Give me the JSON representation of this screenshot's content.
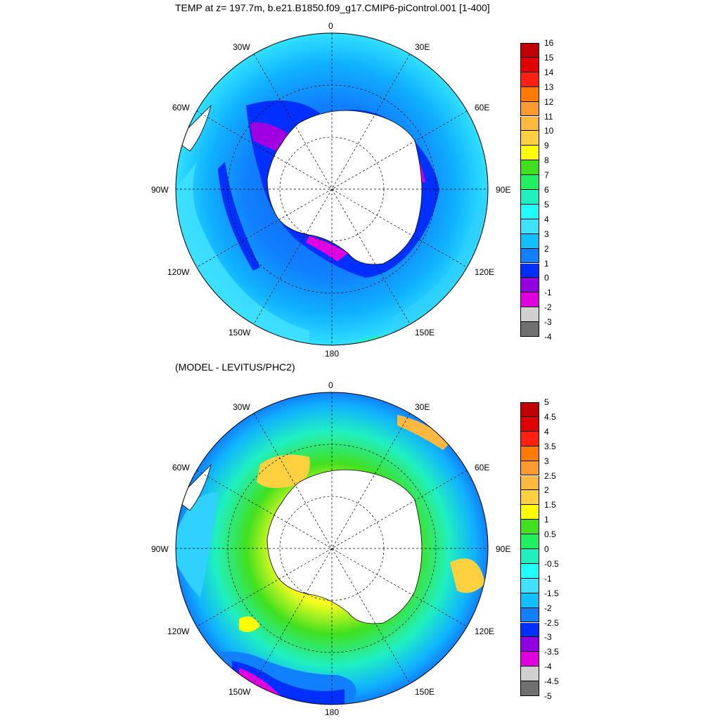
{
  "top_panel": {
    "title": "TEMP at z= 197.7m, b.e21.B1850.f09_g17.CMIP6-piControl.001 [1-400]",
    "longitude_labels": {
      "top": "0",
      "upper_left": "30W",
      "upper_right": "30E",
      "left_upper": "60W",
      "right_upper": "60E",
      "left": "90W",
      "right": "90E",
      "left_lower": "120W",
      "right_lower": "120E",
      "lower_left": "150W",
      "lower_right": "150E",
      "bottom": "180"
    },
    "colorbar_labels": [
      "16",
      "15",
      "14",
      "13",
      "12",
      "11",
      "10",
      "9",
      "8",
      "7",
      "6",
      "5",
      "4",
      "3",
      "2",
      "1",
      "0",
      "-1",
      "-2",
      "-3",
      "-4"
    ],
    "colorbar_colors": [
      "#c00000",
      "#e00000",
      "#ff2010",
      "#ff7a00",
      "#ff9a30",
      "#ffb840",
      "#ffd040",
      "#ffff00",
      "#40e020",
      "#20f060",
      "#20f0c0",
      "#20ffff",
      "#40e0ff",
      "#10c0ff",
      "#1080ff",
      "#0030ff",
      "#9000e0",
      "#e000e0",
      "#d0d0d0",
      "#707070"
    ]
  },
  "bottom_panel": {
    "title": "(MODEL - LEVITUS/PHC2)",
    "longitude_labels": {
      "top": "0",
      "upper_left": "30W",
      "upper_right": "30E",
      "left_upper": "60W",
      "right_upper": "60E",
      "left": "90W",
      "right": "90E",
      "left_lower": "120W",
      "right_lower": "120E",
      "lower_left": "150W",
      "lower_right": "150E",
      "bottom": "180"
    },
    "colorbar_labels": [
      "5",
      "4.5",
      "4",
      "3.5",
      "3",
      "2.5",
      "2",
      "1.5",
      "1",
      "0.5",
      "0",
      "-0.5",
      "-1",
      "-1.5",
      "-2",
      "-2.5",
      "-3",
      "-3.5",
      "-4",
      "-4.5",
      "-5"
    ],
    "colorbar_colors": [
      "#c00000",
      "#e00000",
      "#ff2010",
      "#ff7a00",
      "#ff9a30",
      "#ffb840",
      "#ffd040",
      "#ffff00",
      "#40e020",
      "#20f060",
      "#20f0c0",
      "#20ffff",
      "#40e0ff",
      "#10c0ff",
      "#1080ff",
      "#0030ff",
      "#9000e0",
      "#e000e0",
      "#d0d0d0",
      "#707070"
    ]
  }
}
